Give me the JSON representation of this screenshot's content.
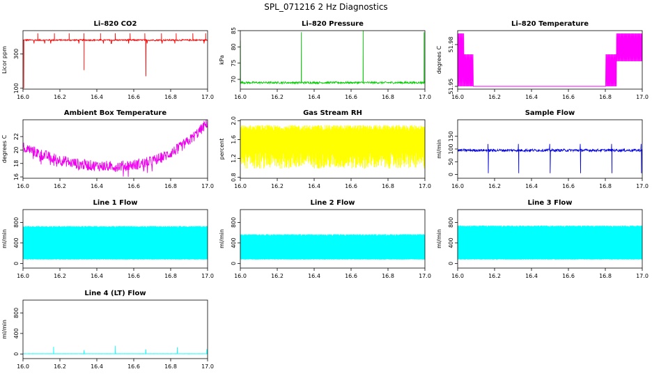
{
  "figure_title": "SPL_071216  2 Hz Diagnostics",
  "chart_data": [
    {
      "type": "line",
      "title": "Li–820 CO2",
      "ylabel": "Licor ppm",
      "color": "#ff0000",
      "xlim": [
        16.0,
        17.0
      ],
      "ylim": [
        95,
        435
      ],
      "yticks": [
        100,
        300
      ],
      "ytick_labels": [
        "100",
        "300"
      ],
      "xticks": [
        16.0,
        16.2,
        16.4,
        16.6,
        16.8,
        17.0
      ],
      "xtick_labels": [
        "16.0",
        "16.2",
        "16.4",
        "16.6",
        "16.8",
        "17.0"
      ],
      "pattern": "co2"
    },
    {
      "type": "line",
      "title": "Li–820 Pressure",
      "ylabel": "kPa",
      "color": "#00cc00",
      "xlim": [
        16.0,
        17.0
      ],
      "ylim": [
        67,
        85
      ],
      "yticks": [
        70,
        75,
        80,
        85
      ],
      "ytick_labels": [
        "70",
        "75",
        "80",
        "85"
      ],
      "xticks": [
        16.0,
        16.2,
        16.4,
        16.6,
        16.8,
        17.0
      ],
      "xtick_labels": [
        "16.0",
        "16.2",
        "16.4",
        "16.6",
        "16.8",
        "17.0"
      ],
      "pattern": "pressure"
    },
    {
      "type": "line",
      "title": "Li–820 Temperature",
      "ylabel": "degrees C",
      "color": "#ff00ff",
      "xlim": [
        16.0,
        17.0
      ],
      "ylim": [
        51.948,
        51.99
      ],
      "yticks": [
        51.95,
        51.98
      ],
      "ytick_labels": [
        "51.95",
        "51.98"
      ],
      "xticks": [
        16.0,
        16.2,
        16.4,
        16.6,
        16.8,
        17.0
      ],
      "xtick_labels": [
        "16.0",
        "16.2",
        "16.4",
        "16.6",
        "16.8",
        "17.0"
      ],
      "pattern": "ltemp"
    },
    {
      "type": "line",
      "title": "Ambient Box Temperature",
      "ylabel": "degrees C",
      "color": "#ee00ee",
      "xlim": [
        16.0,
        17.0
      ],
      "ylim": [
        15.8,
        24.5
      ],
      "yticks": [
        16,
        18,
        20,
        22
      ],
      "ytick_labels": [
        "16",
        "18",
        "20",
        "22"
      ],
      "xticks": [
        16.0,
        16.2,
        16.4,
        16.6,
        16.8,
        17.0
      ],
      "xtick_labels": [
        "16.0",
        "16.2",
        "16.4",
        "16.6",
        "16.8",
        "17.0"
      ],
      "pattern": "ambient"
    },
    {
      "type": "line",
      "title": "Gas Stream RH",
      "ylabel": "percent",
      "color": "#ffff00",
      "xlim": [
        16.0,
        17.0
      ],
      "ylim": [
        0.78,
        2.02
      ],
      "yticks": [
        0.8,
        1.2,
        1.6,
        2.0
      ],
      "ytick_labels": [
        "0.8",
        "1.2",
        "1.6",
        "2.0"
      ],
      "xticks": [
        16.0,
        16.2,
        16.4,
        16.6,
        16.8,
        17.0
      ],
      "xtick_labels": [
        "16.0",
        "16.2",
        "16.4",
        "16.6",
        "16.8",
        "17.0"
      ],
      "pattern": "rh"
    },
    {
      "type": "line",
      "title": "Sample Flow",
      "ylabel": "ml/min",
      "color": "#0000dd",
      "xlim": [
        16.0,
        17.0
      ],
      "ylim": [
        -15,
        215
      ],
      "yticks": [
        0,
        50,
        100,
        150
      ],
      "ytick_labels": [
        "0",
        "50",
        "100",
        "150"
      ],
      "xticks": [
        16.0,
        16.2,
        16.4,
        16.6,
        16.8,
        17.0
      ],
      "xtick_labels": [
        "16.0",
        "16.2",
        "16.4",
        "16.6",
        "16.8",
        "17.0"
      ],
      "pattern": "sample"
    },
    {
      "type": "line",
      "title": "Line 1 Flow",
      "ylabel": "ml/min",
      "color": "#00ffff",
      "xlim": [
        16.0,
        17.0
      ],
      "ylim": [
        -90,
        1050
      ],
      "yticks": [
        0,
        400,
        800
      ],
      "ytick_labels": [
        "0",
        "400",
        "800"
      ],
      "xticks": [
        16.0,
        16.2,
        16.4,
        16.6,
        16.8,
        17.0
      ],
      "xtick_labels": [
        "16.0",
        "16.2",
        "16.4",
        "16.6",
        "16.8",
        "17.0"
      ],
      "pattern": "line1"
    },
    {
      "type": "line",
      "title": "Line 2 Flow",
      "ylabel": "ml/min",
      "color": "#00ffff",
      "xlim": [
        16.0,
        17.0
      ],
      "ylim": [
        -90,
        1050
      ],
      "yticks": [
        0,
        400,
        800
      ],
      "ytick_labels": [
        "0",
        "400",
        "800"
      ],
      "xticks": [
        16.0,
        16.2,
        16.4,
        16.6,
        16.8,
        17.0
      ],
      "xtick_labels": [
        "16.0",
        "16.2",
        "16.4",
        "16.6",
        "16.8",
        "17.0"
      ],
      "pattern": "line2"
    },
    {
      "type": "line",
      "title": "Line 3 Flow",
      "ylabel": "ml/min",
      "color": "#00ffff",
      "xlim": [
        16.0,
        17.0
      ],
      "ylim": [
        -90,
        1050
      ],
      "yticks": [
        0,
        400,
        800
      ],
      "ytick_labels": [
        "0",
        "400",
        "800"
      ],
      "xticks": [
        16.0,
        16.2,
        16.4,
        16.6,
        16.8,
        17.0
      ],
      "xtick_labels": [
        "16.0",
        "16.2",
        "16.4",
        "16.6",
        "16.8",
        "17.0"
      ],
      "pattern": "line3"
    },
    {
      "type": "line",
      "title": "Line 4 (LT) Flow",
      "ylabel": "ml/min",
      "color": "#00ffff",
      "xlim": [
        16.0,
        17.0
      ],
      "ylim": [
        -90,
        1050
      ],
      "yticks": [
        0,
        400,
        800
      ],
      "ytick_labels": [
        "0",
        "400",
        "800"
      ],
      "xticks": [
        16.0,
        16.2,
        16.4,
        16.6,
        16.8,
        17.0
      ],
      "xtick_labels": [
        "16.0",
        "16.2",
        "16.4",
        "16.6",
        "16.8",
        "17.0"
      ],
      "pattern": "line4"
    }
  ]
}
